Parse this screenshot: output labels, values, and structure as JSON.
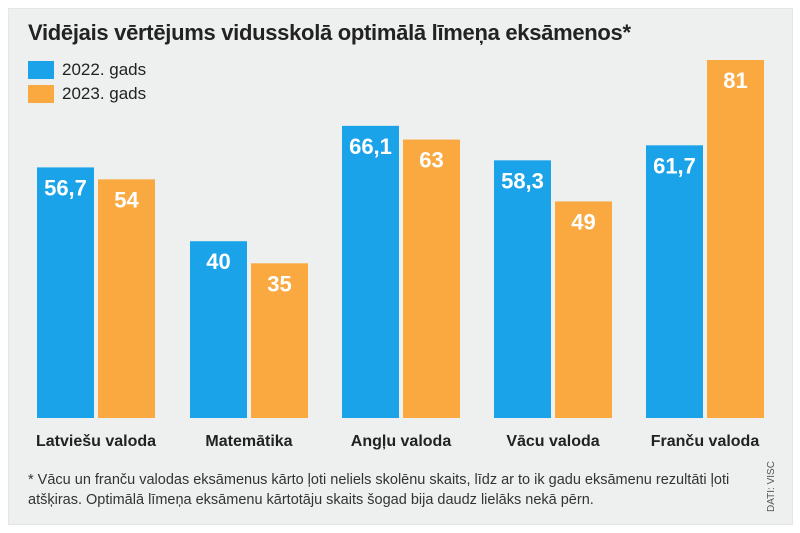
{
  "colors": {
    "series_2022": "#1aa3e8",
    "series_2023": "#f9a93f"
  },
  "chart_data": {
    "type": "bar",
    "title": "Vidējais vērtējums vidusskolā optimālā līmeņa eksāmenos*",
    "categories": [
      "Latviešu valoda",
      "Matemātika",
      "Angļu valoda",
      "Vācu valoda",
      "Franču valoda"
    ],
    "series": [
      {
        "name": "2022. gads",
        "values": [
          56.7,
          40,
          66.1,
          58.3,
          61.7
        ],
        "labels": [
          "56,7",
          "40",
          "66,1",
          "58,3",
          "61,7"
        ]
      },
      {
        "name": "2023. gads",
        "values": [
          54,
          35,
          63,
          49,
          81
        ],
        "labels": [
          "54",
          "35",
          "63",
          "49",
          "81"
        ]
      }
    ],
    "ylim": [
      0,
      81
    ],
    "grid": false,
    "legend_position": "top-left"
  },
  "footnote": "* Vācu un franču valodas eksāmenus kārto ļoti neliels skolēnu skaits, līdz ar to ik gadu eksāmenu rezultāti ļoti atšķiras. Optimālā līmeņa eksāmenu kārtotāju skaits šogad bija daudz lielāks nekā pērn.",
  "source": "DATI: VISC"
}
